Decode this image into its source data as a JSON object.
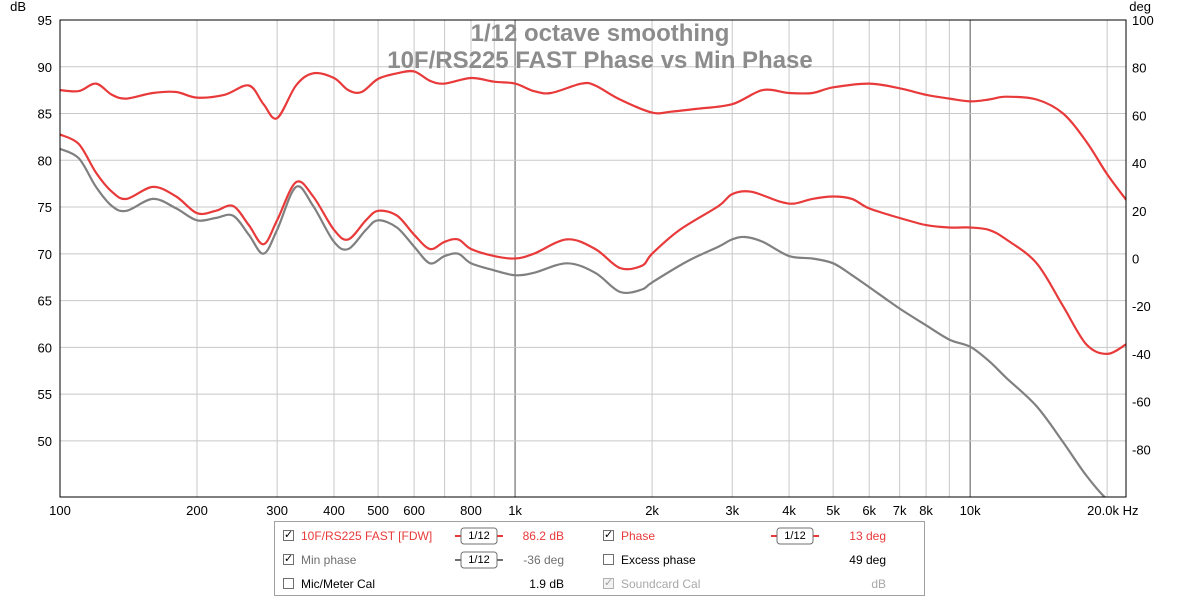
{
  "chart_data": {
    "type": "line",
    "title": "1/12 octave smoothing",
    "subtitle": "10F/RS225 FAST Phase vs Min Phase",
    "x_scale": "log",
    "xlim": [
      100,
      22000
    ],
    "x_ticks": [
      100,
      200,
      300,
      400,
      500,
      600,
      800,
      1000,
      2000,
      3000,
      4000,
      5000,
      6000,
      7000,
      8000,
      10000,
      20000
    ],
    "x_tick_labels": [
      "100",
      "200",
      "300",
      "400",
      "500",
      "600",
      "800",
      "1k",
      "2k",
      "3k",
      "4k",
      "5k",
      "6k",
      "7k",
      "8k",
      "10k",
      "20.0k Hz"
    ],
    "ylabel_left": "dB",
    "ylim_left": [
      44,
      95
    ],
    "y_ticks_left": [
      50,
      55,
      60,
      65,
      70,
      75,
      80,
      85,
      90,
      95
    ],
    "ylabel_right": "deg",
    "ylim_right": [
      -100,
      100
    ],
    "y_ticks_right": [
      -80,
      -60,
      -40,
      -20,
      0,
      20,
      40,
      60,
      80,
      100
    ],
    "grid": true,
    "series": [
      {
        "name": "10F/RS225 FAST [FDW]",
        "axis": "left",
        "color": "#e83a3a",
        "points": [
          [
            100,
            87.5
          ],
          [
            110,
            87.4
          ],
          [
            120,
            88.2
          ],
          [
            130,
            87.0
          ],
          [
            140,
            86.6
          ],
          [
            160,
            87.2
          ],
          [
            180,
            87.3
          ],
          [
            200,
            86.7
          ],
          [
            230,
            87.0
          ],
          [
            260,
            88.0
          ],
          [
            280,
            86.0
          ],
          [
            300,
            84.5
          ],
          [
            330,
            88.0
          ],
          [
            360,
            89.3
          ],
          [
            400,
            88.8
          ],
          [
            430,
            87.5
          ],
          [
            460,
            87.3
          ],
          [
            500,
            88.7
          ],
          [
            550,
            89.3
          ],
          [
            600,
            89.5
          ],
          [
            650,
            88.5
          ],
          [
            700,
            88.2
          ],
          [
            800,
            88.8
          ],
          [
            900,
            88.4
          ],
          [
            1000,
            88.2
          ],
          [
            1100,
            87.4
          ],
          [
            1200,
            87.2
          ],
          [
            1400,
            88.2
          ],
          [
            1500,
            88.0
          ],
          [
            1700,
            86.5
          ],
          [
            2000,
            85.1
          ],
          [
            2200,
            85.2
          ],
          [
            2500,
            85.5
          ],
          [
            3000,
            86.0
          ],
          [
            3500,
            87.5
          ],
          [
            4000,
            87.2
          ],
          [
            4500,
            87.2
          ],
          [
            5000,
            87.8
          ],
          [
            6000,
            88.2
          ],
          [
            7000,
            87.7
          ],
          [
            8000,
            87.0
          ],
          [
            9000,
            86.6
          ],
          [
            10000,
            86.3
          ],
          [
            11000,
            86.5
          ],
          [
            12000,
            86.8
          ],
          [
            14000,
            86.5
          ],
          [
            16000,
            85.0
          ],
          [
            18000,
            82.0
          ],
          [
            20000,
            78.5
          ],
          [
            22000,
            75.8
          ]
        ]
      },
      {
        "name": "Phase",
        "axis": "right",
        "color": "#e83a3a",
        "points": [
          [
            100,
            52
          ],
          [
            110,
            48
          ],
          [
            120,
            36
          ],
          [
            130,
            28
          ],
          [
            140,
            25
          ],
          [
            160,
            30
          ],
          [
            180,
            26
          ],
          [
            200,
            19
          ],
          [
            220,
            20
          ],
          [
            240,
            22
          ],
          [
            260,
            14
          ],
          [
            280,
            6
          ],
          [
            300,
            16
          ],
          [
            330,
            32
          ],
          [
            360,
            26
          ],
          [
            400,
            12
          ],
          [
            430,
            8
          ],
          [
            470,
            16
          ],
          [
            500,
            20
          ],
          [
            550,
            18
          ],
          [
            600,
            10
          ],
          [
            650,
            4
          ],
          [
            700,
            7
          ],
          [
            750,
            8
          ],
          [
            800,
            4
          ],
          [
            900,
            1
          ],
          [
            1000,
            0
          ],
          [
            1100,
            2
          ],
          [
            1300,
            8
          ],
          [
            1500,
            4
          ],
          [
            1700,
            -4
          ],
          [
            1900,
            -3
          ],
          [
            2000,
            2
          ],
          [
            2300,
            12
          ],
          [
            2800,
            22
          ],
          [
            3000,
            27
          ],
          [
            3300,
            28
          ],
          [
            3800,
            24
          ],
          [
            4100,
            23
          ],
          [
            4500,
            25
          ],
          [
            5000,
            26
          ],
          [
            5500,
            25
          ],
          [
            6000,
            21
          ],
          [
            7000,
            17
          ],
          [
            8000,
            14
          ],
          [
            9000,
            13
          ],
          [
            10000,
            13
          ],
          [
            11000,
            12
          ],
          [
            12000,
            8
          ],
          [
            14000,
            -2
          ],
          [
            16000,
            -20
          ],
          [
            18000,
            -36
          ],
          [
            20000,
            -40
          ],
          [
            22000,
            -36
          ]
        ]
      },
      {
        "name": "Min phase",
        "axis": "right",
        "color": "#808080",
        "points": [
          [
            100,
            46
          ],
          [
            110,
            42
          ],
          [
            120,
            30
          ],
          [
            130,
            22
          ],
          [
            140,
            20
          ],
          [
            160,
            25
          ],
          [
            180,
            21
          ],
          [
            200,
            16
          ],
          [
            220,
            17
          ],
          [
            240,
            18
          ],
          [
            260,
            10
          ],
          [
            280,
            2
          ],
          [
            300,
            12
          ],
          [
            330,
            30
          ],
          [
            360,
            22
          ],
          [
            400,
            7
          ],
          [
            430,
            4
          ],
          [
            470,
            12
          ],
          [
            500,
            16
          ],
          [
            550,
            13
          ],
          [
            600,
            5
          ],
          [
            650,
            -2
          ],
          [
            700,
            1
          ],
          [
            750,
            2
          ],
          [
            800,
            -2
          ],
          [
            900,
            -5
          ],
          [
            1000,
            -7
          ],
          [
            1100,
            -6
          ],
          [
            1300,
            -2
          ],
          [
            1500,
            -6
          ],
          [
            1700,
            -14
          ],
          [
            1900,
            -13
          ],
          [
            2000,
            -10
          ],
          [
            2400,
            -1
          ],
          [
            2800,
            5
          ],
          [
            3000,
            8
          ],
          [
            3200,
            9
          ],
          [
            3500,
            7
          ],
          [
            4000,
            1
          ],
          [
            4500,
            0
          ],
          [
            5000,
            -2
          ],
          [
            5500,
            -7
          ],
          [
            6000,
            -12
          ],
          [
            7000,
            -21
          ],
          [
            8000,
            -28
          ],
          [
            9000,
            -34
          ],
          [
            10000,
            -37
          ],
          [
            11000,
            -43
          ],
          [
            12000,
            -50
          ],
          [
            14000,
            -62
          ],
          [
            16000,
            -77
          ],
          [
            18000,
            -91
          ],
          [
            20000,
            -101
          ],
          [
            21000,
            -102
          ]
        ]
      }
    ]
  },
  "legend": {
    "rows": [
      [
        {
          "checked": true,
          "label": "10F/RS225 FAST [FDW]",
          "color": "#e83a3a",
          "smoothing": "1/12",
          "value": "86.2 dB",
          "value_color": "#e83a3a"
        },
        {
          "checked": true,
          "label": "Phase",
          "color": "#e83a3a",
          "smoothing": "1/12",
          "value": "13 deg",
          "value_color": "#e83a3a"
        }
      ],
      [
        {
          "checked": true,
          "label": "Min phase",
          "color": "#707070",
          "smoothing": "1/12",
          "value": "-36 deg",
          "value_color": "#707070"
        },
        {
          "checked": false,
          "label": "Excess phase",
          "color": "#000000",
          "value": "49 deg",
          "value_color": "#000000"
        }
      ],
      [
        {
          "checked": false,
          "label": "Mic/Meter Cal",
          "color": "#000000",
          "value": "1.9 dB",
          "value_color": "#000000"
        },
        {
          "checked": true,
          "disabled": true,
          "label": "Soundcard Cal",
          "color": "#a8a8a8",
          "value": "dB",
          "value_color": "#a8a8a8"
        }
      ]
    ]
  }
}
